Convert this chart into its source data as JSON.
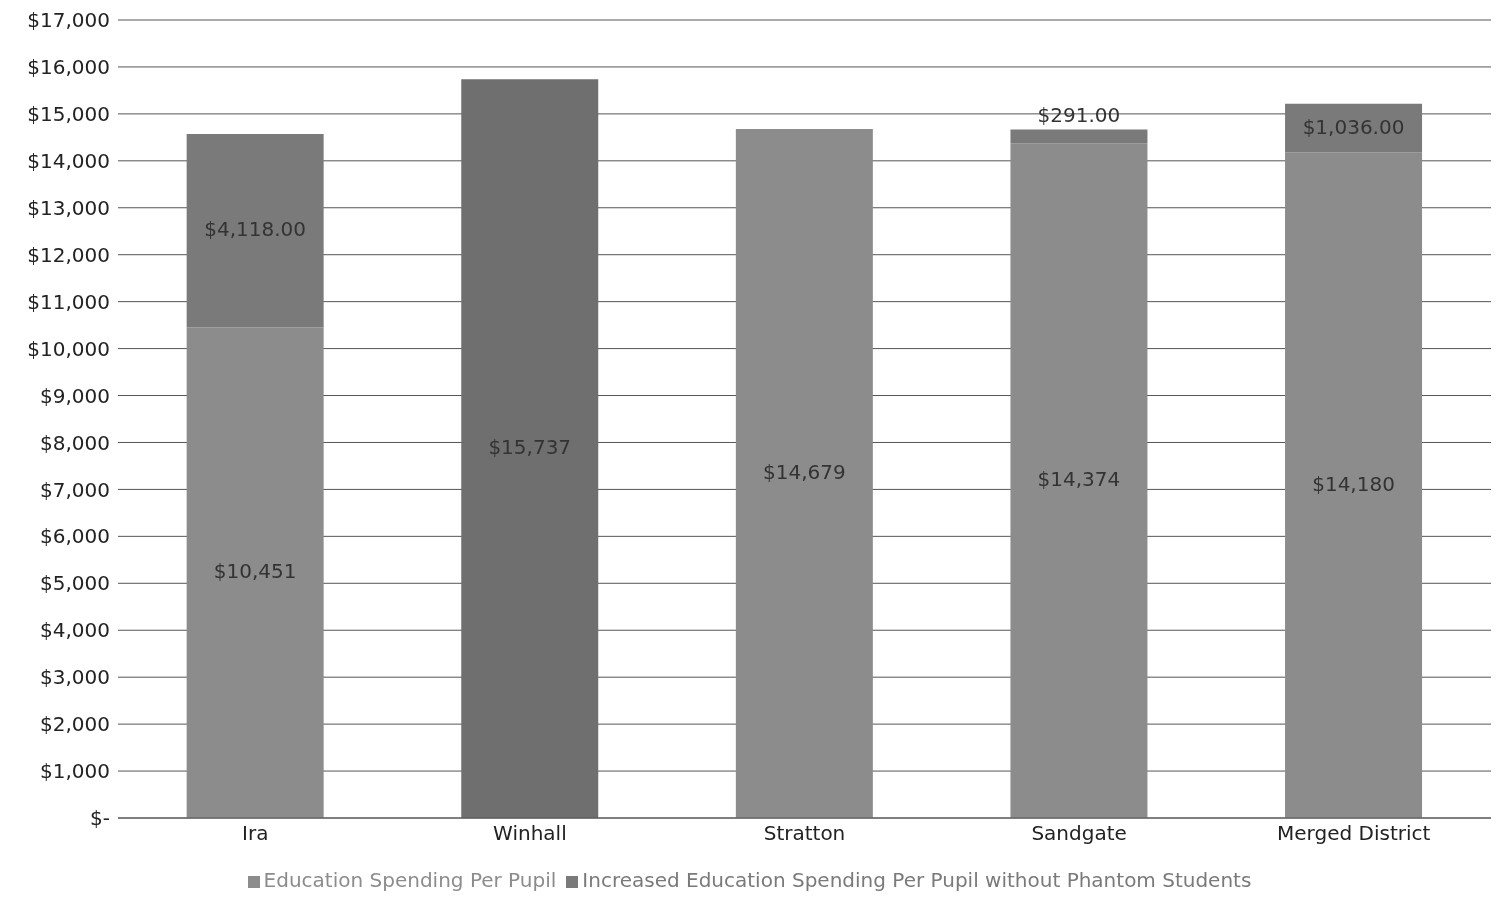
{
  "chart_data": {
    "type": "bar",
    "stacked": true,
    "categories": [
      "Ira",
      "Winhall",
      "Stratton",
      "Sandgate",
      "Merged District"
    ],
    "series": [
      {
        "name": "Education Spending Per Pupil",
        "color": "#8c8c8c",
        "colors": [
          "#8c8c8c",
          "#6f6f6f",
          "#8c8c8c",
          "#8c8c8c",
          "#8c8c8c"
        ],
        "values": [
          10451,
          15737,
          14679,
          14374,
          14180
        ],
        "value_labels": [
          "$10,451",
          "$15,737",
          "$14,679",
          "$14,374",
          "$14,180"
        ]
      },
      {
        "name": "Increased Education Spending Per Pupil without Phantom Students",
        "color": "#7a7a7a",
        "values": [
          4118,
          null,
          null,
          291,
          1036
        ],
        "value_labels": [
          "$4,118.00",
          null,
          null,
          "$291.00",
          "$1,036.00"
        ]
      }
    ],
    "ylim": [
      0,
      17000
    ],
    "yticks": [
      {
        "value": 0,
        "label": "$-"
      },
      {
        "value": 1000,
        "label": "$1,000"
      },
      {
        "value": 2000,
        "label": "$2,000"
      },
      {
        "value": 3000,
        "label": "$3,000"
      },
      {
        "value": 4000,
        "label": "$4,000"
      },
      {
        "value": 5000,
        "label": "$5,000"
      },
      {
        "value": 6000,
        "label": "$6,000"
      },
      {
        "value": 7000,
        "label": "$7,000"
      },
      {
        "value": 8000,
        "label": "$8,000"
      },
      {
        "value": 9000,
        "label": "$9,000"
      },
      {
        "value": 10000,
        "label": "$10,000"
      },
      {
        "value": 11000,
        "label": "$11,000"
      },
      {
        "value": 12000,
        "label": "$12,000"
      },
      {
        "value": 13000,
        "label": "$13,000"
      },
      {
        "value": 14000,
        "label": "$14,000"
      },
      {
        "value": 15000,
        "label": "$15,000"
      },
      {
        "value": 16000,
        "label": "$16,000"
      },
      {
        "value": 17000,
        "label": "$17,000"
      }
    ],
    "grid": "y",
    "legend": "bottom"
  }
}
